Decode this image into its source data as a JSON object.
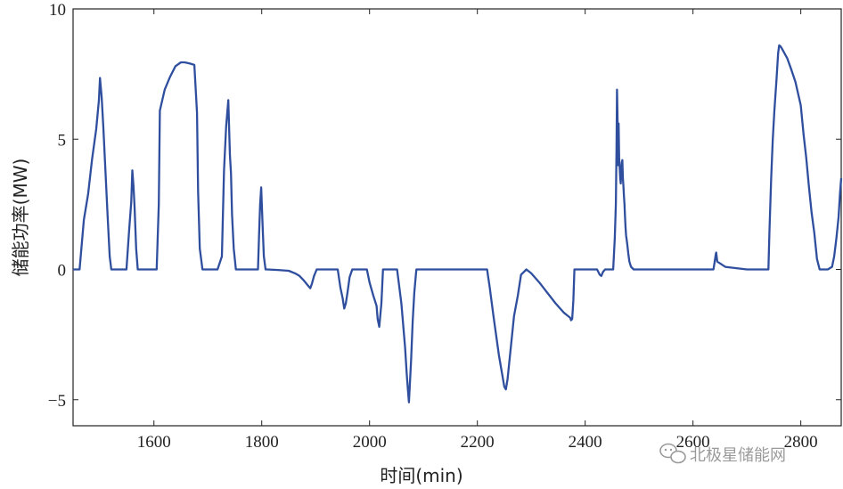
{
  "chart_data": {
    "type": "line",
    "title": "",
    "xlabel": "时间(min)",
    "ylabel": "储能功率(MW)",
    "xlim": [
      1450,
      2875
    ],
    "ylim": [
      -6,
      10
    ],
    "xticks": [
      1600,
      1800,
      2000,
      2200,
      2400,
      2600,
      2800
    ],
    "yticks": [
      -5,
      0,
      5,
      10
    ],
    "ytick_labels": [
      "−5",
      "0",
      "5",
      "10"
    ],
    "grid": false,
    "series": [
      {
        "color": "#2f4f9e",
        "x": [
          1450,
          1462,
          1470,
          1478,
          1485,
          1493,
          1498,
          1500,
          1503,
          1506,
          1510,
          1514,
          1518,
          1521,
          1538,
          1549,
          1554,
          1558,
          1560,
          1562,
          1564,
          1567,
          1570,
          1579,
          1605,
          1609,
          1611,
          1620,
          1630,
          1640,
          1650,
          1657,
          1667,
          1675,
          1680,
          1682,
          1685,
          1690,
          1700,
          1718,
          1726,
          1730,
          1734,
          1738,
          1741,
          1743,
          1745,
          1748,
          1752,
          1755,
          1758,
          1776,
          1793,
          1795,
          1797,
          1799,
          1800,
          1802,
          1804,
          1807,
          1810,
          1830,
          1850,
          1862,
          1870,
          1878,
          1885,
          1890,
          1893,
          1897,
          1902,
          1935,
          1941,
          1946,
          1950,
          1953,
          1956,
          1959,
          1963,
          1968,
          1995,
          2000,
          2007,
          2013,
          2015,
          2018,
          2022,
          2025,
          2051,
          2059,
          2066,
          2069,
          2071,
          2073,
          2077,
          2080,
          2083,
          2086,
          2087,
          2100,
          2130,
          2160,
          2190,
          2218,
          2223,
          2230,
          2240,
          2250,
          2253,
          2256,
          2262,
          2268,
          2275,
          2281,
          2291,
          2300,
          2315,
          2330,
          2345,
          2360,
          2372,
          2374,
          2376,
          2378,
          2380,
          2412,
          2422,
          2427,
          2430,
          2433,
          2437,
          2447,
          2452,
          2455,
          2457,
          2458,
          2459,
          2460,
          2461,
          2462,
          2463,
          2464,
          2465,
          2466,
          2467,
          2468,
          2469,
          2470,
          2471,
          2472,
          2473,
          2474,
          2475,
          2476,
          2478,
          2480,
          2482,
          2485,
          2490,
          2550,
          2600,
          2635,
          2638,
          2640,
          2642,
          2643,
          2645,
          2660,
          2700,
          2735,
          2740,
          2742,
          2745,
          2748,
          2751,
          2755,
          2758,
          2760,
          2763,
          2767,
          2775,
          2782,
          2790,
          2800,
          2805,
          2810,
          2815,
          2820,
          2825,
          2830,
          2835,
          2840,
          2850,
          2858,
          2862,
          2866,
          2870,
          2873,
          2875
        ]
      }
    ],
    "y": [
      0,
      0,
      1.9,
      2.9,
      4.2,
      5.4,
      6.5,
      7.35,
      6.6,
      5.5,
      3.8,
      2.1,
      0.5,
      0,
      0,
      0,
      1.5,
      2.6,
      3.8,
      3.2,
      2.4,
      0.8,
      0,
      0,
      0,
      2.5,
      6.1,
      6.9,
      7.4,
      7.8,
      7.95,
      7.95,
      7.9,
      7.85,
      6,
      3,
      0.8,
      0,
      0,
      0,
      0.5,
      3.8,
      5.5,
      6.5,
      4.4,
      3.7,
      2.1,
      0.8,
      0,
      0,
      0,
      0,
      0,
      1.3,
      2.5,
      3.15,
      2.6,
      1.5,
      0.5,
      0,
      0,
      -0.02,
      -0.05,
      -0.15,
      -0.25,
      -0.42,
      -0.6,
      -0.72,
      -0.55,
      -0.25,
      0,
      0,
      0,
      -0.7,
      -1.1,
      -1.5,
      -1.3,
      -0.9,
      -0.3,
      0,
      0,
      -0.5,
      -1.0,
      -1.4,
      -1.9,
      -2.2,
      -1.3,
      0,
      0,
      -1.3,
      -3.0,
      -4.0,
      -4.6,
      -5.1,
      -3.5,
      -2.0,
      -0.9,
      -0.2,
      0,
      0,
      0,
      0,
      0,
      0,
      -0.7,
      -1.8,
      -3.3,
      -4.5,
      -4.6,
      -4.2,
      -3.0,
      -1.8,
      -1.0,
      -0.2,
      0,
      -0.15,
      -0.5,
      -0.9,
      -1.3,
      -1.65,
      -1.85,
      -1.95,
      -1.9,
      -1.2,
      0,
      0,
      0,
      -0.2,
      -0.25,
      -0.1,
      0,
      0,
      0,
      1.2,
      2.5,
      4.5,
      6.9,
      5.8,
      4.0,
      5.6,
      4.3,
      3.9,
      3.5,
      3.3,
      3.8,
      4.1,
      4.2,
      3.5,
      3.2,
      2.8,
      2.5,
      2.0,
      1.6,
      1.3,
      1.0,
      0.6,
      0.3,
      0.1,
      0,
      0,
      0,
      0,
      0,
      0.25,
      0.55,
      0.65,
      0.3,
      0.1,
      0,
      0,
      0,
      1.5,
      3.5,
      5.0,
      6.1,
      7.3,
      8.3,
      8.6,
      8.55,
      8.4,
      8.1,
      7.7,
      7.2,
      6.3,
      5.2,
      4.3,
      3.2,
      2.2,
      1.4,
      0.4,
      0,
      0,
      0,
      0.1,
      0.5,
      1.2,
      2.0,
      3.0,
      3.5
    ]
  },
  "watermark": {
    "icon": "wechat-icon",
    "text": "北极星储能网"
  }
}
